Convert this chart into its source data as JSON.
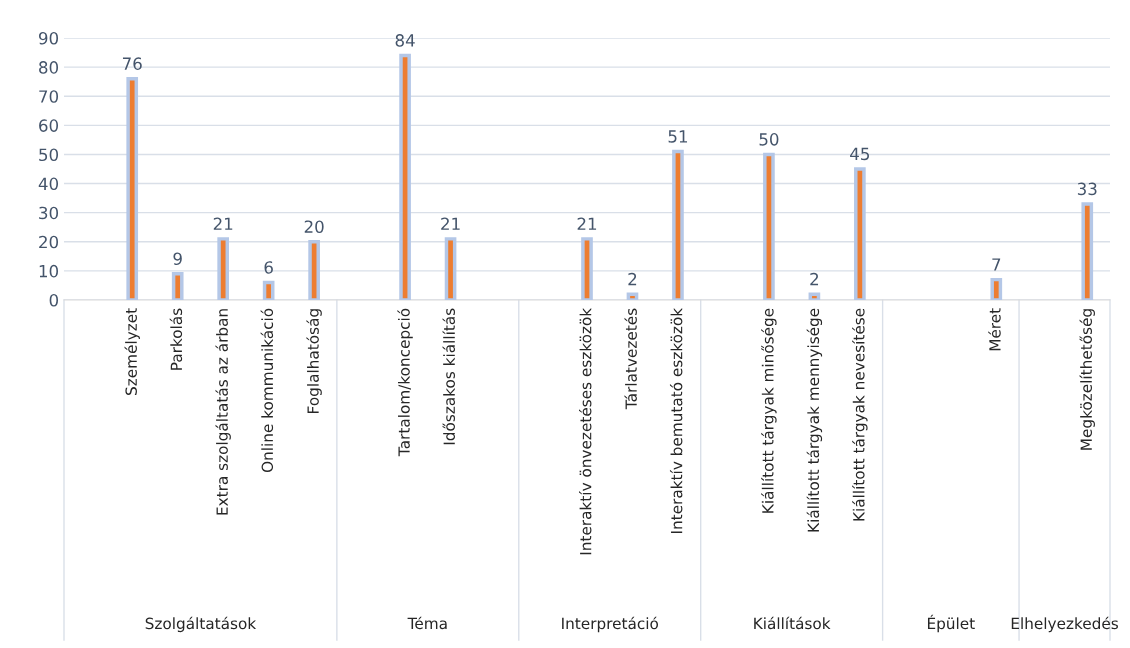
{
  "chart_data": {
    "type": "bar",
    "categories": [
      null,
      "Személyzet",
      "Parkolás",
      "Extra szolgáltatás az árban",
      "Online kommunikáció",
      "Foglalhatóság",
      null,
      "Tartalom/koncepció",
      "Időszakos kiállítás",
      null,
      null,
      "Interaktív önvezetéses eszközök",
      "Tárlatvezetés",
      "Interaktív bemutató eszközök",
      null,
      "Kiállított tárgyak minősége",
      "Kiállított tárgyak mennyisége",
      "Kiállított tárgyak nevesítése",
      null,
      null,
      "Méret",
      null,
      "Megközelíthetőség"
    ],
    "values": [
      null,
      76,
      9,
      21,
      6,
      20,
      null,
      84,
      21,
      null,
      null,
      21,
      2,
      51,
      null,
      50,
      2,
      45,
      null,
      null,
      7,
      null,
      33
    ],
    "color": "#ed7d31",
    "ylim": [
      0,
      90
    ],
    "yticks": [
      0,
      10,
      20,
      30,
      40,
      50,
      60,
      70,
      80,
      90
    ],
    "grid": "y",
    "data_labels": true,
    "annotations": [
      "Szolgáltatások",
      "Téma",
      "Interpretáció",
      "Kiállítások",
      "Épület",
      "Elhelyezkedés"
    ]
  }
}
